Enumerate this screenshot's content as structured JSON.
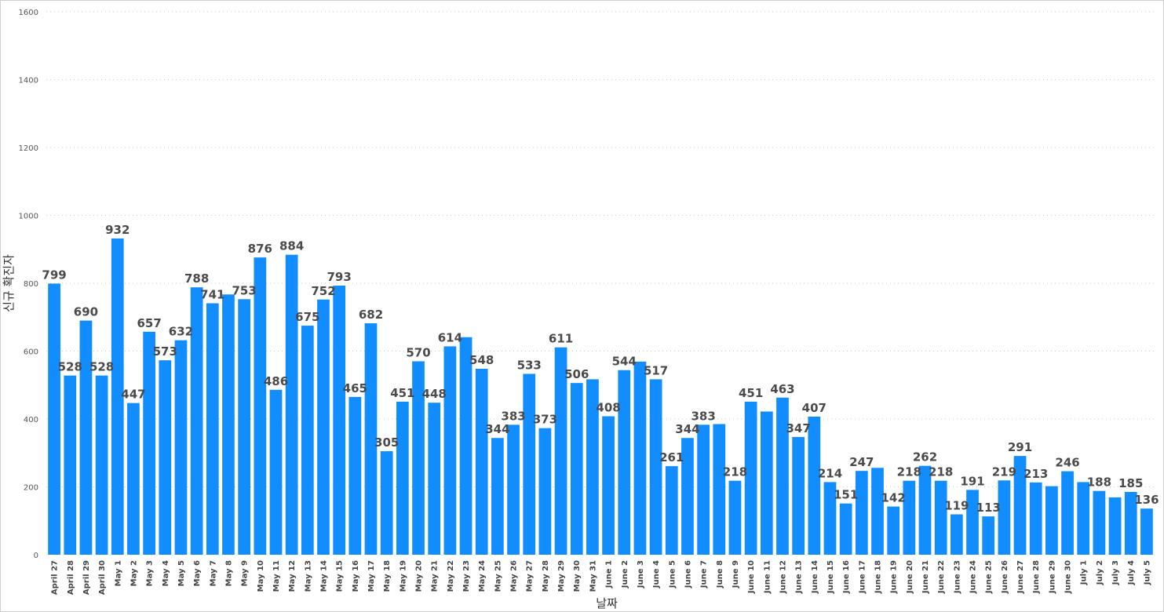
{
  "chart_data": {
    "type": "bar",
    "xlabel": "날짜",
    "ylabel": "신규 확진자",
    "ylim": [
      0,
      1600
    ],
    "yticks": [
      0,
      200,
      400,
      600,
      800,
      1000,
      1200,
      1400,
      1600
    ],
    "grid": true,
    "bar_color": "#118dff",
    "categories": [
      "April 27",
      "April 28",
      "April 29",
      "April 30",
      "May 1",
      "May 2",
      "May 3",
      "May 4",
      "May 5",
      "May 6",
      "May 7",
      "May 8",
      "May 9",
      "May 10",
      "May 11",
      "May 12",
      "May 13",
      "May 14",
      "May 15",
      "May 16",
      "May 17",
      "May 18",
      "May 19",
      "May 20",
      "May 21",
      "May 22",
      "May 23",
      "May 24",
      "May 25",
      "May 26",
      "May 27",
      "May 28",
      "May 29",
      "May 30",
      "May 31",
      "June 1",
      "June 2",
      "June 3",
      "June 4",
      "June 5",
      "June 6",
      "June 7",
      "June 8",
      "June 9",
      "June 10",
      "June 11",
      "June 12",
      "June 13",
      "June 14",
      "June 15",
      "June 16",
      "June 17",
      "June 18",
      "June 19",
      "June 20",
      "June 21",
      "June 22",
      "June 23",
      "June 24",
      "June 25",
      "June 26",
      "June 27",
      "June 28",
      "June 29",
      "June 30",
      "July 1",
      "July 2",
      "July 3",
      "July 4",
      "July 5"
    ],
    "values": [
      799,
      528,
      690,
      528,
      932,
      447,
      657,
      573,
      632,
      788,
      741,
      767,
      753,
      876,
      486,
      884,
      675,
      752,
      793,
      465,
      682,
      305,
      451,
      570,
      448,
      614,
      641,
      548,
      344,
      383,
      533,
      373,
      611,
      506,
      517,
      408,
      544,
      569,
      517,
      261,
      344,
      383,
      385,
      218,
      451,
      422,
      463,
      347,
      407,
      214,
      151,
      247,
      256,
      142,
      218,
      262,
      218,
      119,
      191,
      113,
      219,
      291,
      213,
      202,
      246,
      214,
      188,
      169,
      185,
      136
    ],
    "data_labels": [
      "799",
      "528",
      "690",
      "528",
      "932",
      "447",
      "657",
      "573",
      "632",
      "788",
      "741",
      "",
      "753",
      "876",
      "486",
      "884",
      "675",
      "752",
      "793",
      "465",
      "682",
      "305",
      "451",
      "570",
      "448",
      "614",
      "",
      "548",
      "344",
      "383",
      "533",
      "373",
      "611",
      "506",
      "",
      "408",
      "544",
      "",
      "517",
      "261",
      "344",
      "383",
      "",
      "218",
      "451",
      "",
      "463",
      "347",
      "407",
      "214",
      "151",
      "247",
      "",
      "142",
      "218",
      "262",
      "218",
      "119",
      "191",
      "113",
      "219",
      "291",
      "213",
      "",
      "246",
      "",
      "188",
      "",
      "185",
      "136"
    ]
  }
}
